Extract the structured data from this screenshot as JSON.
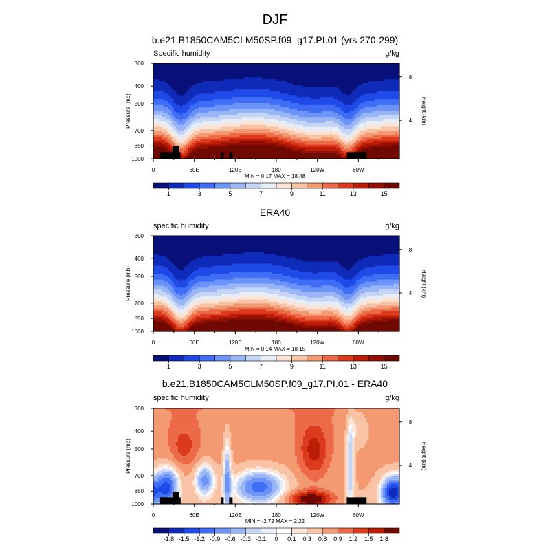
{
  "figure": {
    "title": "DJF"
  },
  "chart_data": [
    {
      "type": "heatmap",
      "title": "b.e21.B1850CAM5CLM50SP.f09_g17.PI.01 (yrs 270-299)",
      "left_label": "Specific humidity",
      "units": "g/kg",
      "ylabel": "Pressure (mb)",
      "ylabel_right": "Height (km)",
      "y_ticks": [
        "300",
        "400",
        "500",
        "700",
        "850",
        "1000"
      ],
      "y_ticks_right": [
        "8",
        "4"
      ],
      "x_ticks": [
        "0",
        "60E",
        "120E",
        "180",
        "120W",
        "60W"
      ],
      "stats": "MIN =   0.17  MAX =  18.48",
      "stat_min": 0.17,
      "stat_max": 18.48,
      "colorbar_labels": [
        "1",
        "3",
        "5",
        "7",
        "9",
        "11",
        "13",
        "15"
      ],
      "field": "model",
      "topography": true
    },
    {
      "type": "heatmap",
      "title": "ERA40",
      "left_label": "specific humidity",
      "units": "g/kg",
      "ylabel": "Pressure (mb)",
      "ylabel_right": "Height (km)",
      "y_ticks": [
        "300",
        "400",
        "500",
        "700",
        "850",
        "1000"
      ],
      "y_ticks_right": [
        "8",
        "4"
      ],
      "x_ticks": [
        "0",
        "60E",
        "120E",
        "180",
        "120W",
        "60W"
      ],
      "stats": "MIN =   0.14  MAX =  18.15",
      "stat_min": 0.14,
      "stat_max": 18.15,
      "colorbar_labels": [
        "1",
        "3",
        "5",
        "7",
        "9",
        "11",
        "13",
        "15"
      ],
      "field": "obs",
      "topography": false
    },
    {
      "type": "heatmap",
      "title": "b.e21.B1850CAM5CLM50SP.f09_g17.PI.01 - ERA40",
      "left_label": "specific humidity",
      "units": "g/kg",
      "ylabel": "Pressure (mb)",
      "ylabel_right": "Height (km)",
      "y_ticks": [
        "300",
        "400",
        "500",
        "700",
        "850",
        "1000"
      ],
      "y_ticks_right": [
        "8",
        "4"
      ],
      "x_ticks": [
        "0",
        "60E",
        "120E",
        "180",
        "120W",
        "60W"
      ],
      "stats": "MIN =  -2.72  MAX =   2.22",
      "stat_min": -2.72,
      "stat_max": 2.22,
      "colorbar_labels": [
        "-1.8",
        "-1.5",
        "-1.2",
        "-0.9",
        "-0.6",
        "-0.3",
        "-0.1",
        "0",
        "0.1",
        "0.3",
        "0.6",
        "0.9",
        "1.2",
        "1.5",
        "1.8"
      ],
      "field": "diff",
      "topography": true
    }
  ],
  "colors": {
    "abs_palette": [
      "#09107a",
      "#0f2bb8",
      "#1f4ae8",
      "#3f6ef5",
      "#6c93f7",
      "#9ab5f5",
      "#c5d5f6",
      "#e7edf7",
      "#fbe3d5",
      "#f9c3a6",
      "#f49a73",
      "#ec6a48",
      "#db3b1c",
      "#bb1d06",
      "#951004",
      "#6f0902"
    ],
    "diff_palette": [
      "#09107a",
      "#0f2bb8",
      "#1f4ae8",
      "#3f6ef5",
      "#6c93f7",
      "#9ab5f5",
      "#c5d5f6",
      "#e7edf7",
      "#ffffff",
      "#fbe3d5",
      "#f9c3a6",
      "#f49a73",
      "#ec6a48",
      "#db3b1c",
      "#bb1d06",
      "#6f0902"
    ],
    "topography": "#000000"
  }
}
